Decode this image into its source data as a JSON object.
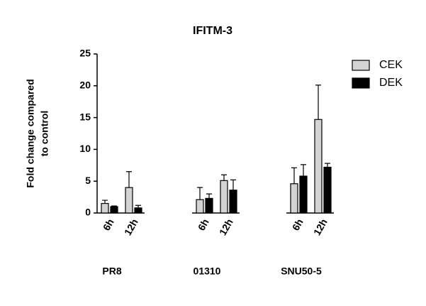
{
  "chart_data": {
    "type": "grouped-bar",
    "title": "IFITM-3",
    "ylabel": [
      "Fold change compared",
      "to control"
    ],
    "groups": [
      "PR8",
      "01310",
      "SNU50-5"
    ],
    "categories": [
      "6h",
      "12h",
      "6h",
      "12h",
      "6h",
      "12h"
    ],
    "series": [
      {
        "name": "CEK",
        "color": "#d3d3d3",
        "values": [
          1.5,
          4.0,
          2.1,
          5.1,
          4.6,
          14.7
        ],
        "errors": [
          0.5,
          2.5,
          1.9,
          0.9,
          2.5,
          5.4
        ]
      },
      {
        "name": "DEK",
        "color": "#000000",
        "values": [
          1.0,
          0.8,
          2.3,
          3.6,
          5.8,
          7.2
        ],
        "errors": [
          0.1,
          0.4,
          0.7,
          1.6,
          1.8,
          0.6
        ]
      }
    ],
    "ylim": [
      0,
      25
    ],
    "yticks": [
      0,
      5,
      10,
      15,
      20,
      25
    ],
    "grid": false,
    "legend": "top-right"
  }
}
